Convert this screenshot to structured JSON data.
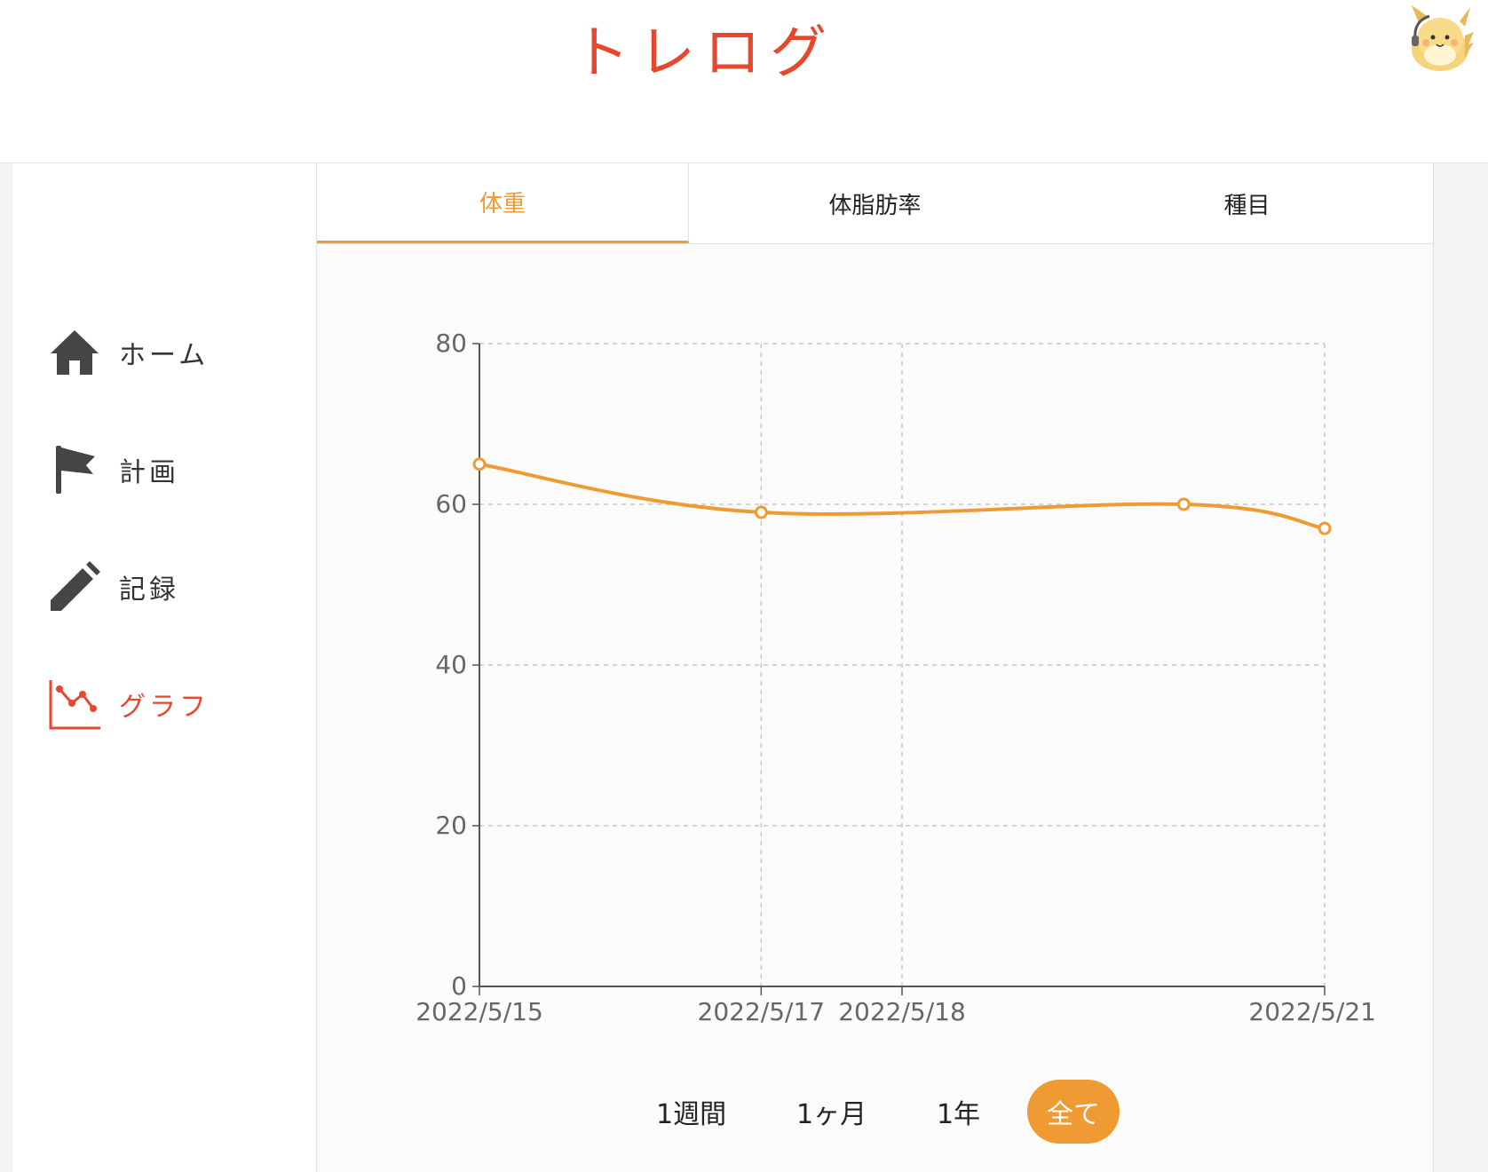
{
  "header": {
    "title": "トレログ"
  },
  "sidebar": {
    "items": [
      {
        "label": "ホーム",
        "icon": "home-icon",
        "active": false
      },
      {
        "label": "計画",
        "icon": "flag-icon",
        "active": false
      },
      {
        "label": "記録",
        "icon": "pencil-icon",
        "active": false
      },
      {
        "label": "グラフ",
        "icon": "line-chart-icon",
        "active": true
      }
    ]
  },
  "tabs": [
    {
      "label": "体重",
      "active": true
    },
    {
      "label": "体脂肪率",
      "active": false
    },
    {
      "label": "種目",
      "active": false
    }
  ],
  "ranges": [
    {
      "label": "1週間",
      "active": false
    },
    {
      "label": "1ヶ月",
      "active": false
    },
    {
      "label": "1年",
      "active": false
    },
    {
      "label": "全て",
      "active": true
    }
  ],
  "colors": {
    "brand": "#e5472f",
    "accent": "#ef9a32",
    "sidebar_icon": "#454545"
  },
  "chart_data": {
    "type": "line",
    "title": "",
    "xlabel": "",
    "ylabel": "",
    "x_ticks": [
      "2022/5/15",
      "2022/5/17",
      "2022/5/18",
      "2022/5/21"
    ],
    "y_ticks": [
      0,
      20,
      40,
      60,
      80
    ],
    "ylim": [
      0,
      80
    ],
    "xlim": [
      "2022/5/15",
      "2022/5/21"
    ],
    "grid": true,
    "series": [
      {
        "points": [
          {
            "x": "2022/5/15",
            "y": 65
          },
          {
            "x": "2022/5/17",
            "y": 59
          },
          {
            "x": "2022/5/20",
            "y": 60
          },
          {
            "x": "2022/5/21",
            "y": 57
          }
        ]
      }
    ]
  }
}
